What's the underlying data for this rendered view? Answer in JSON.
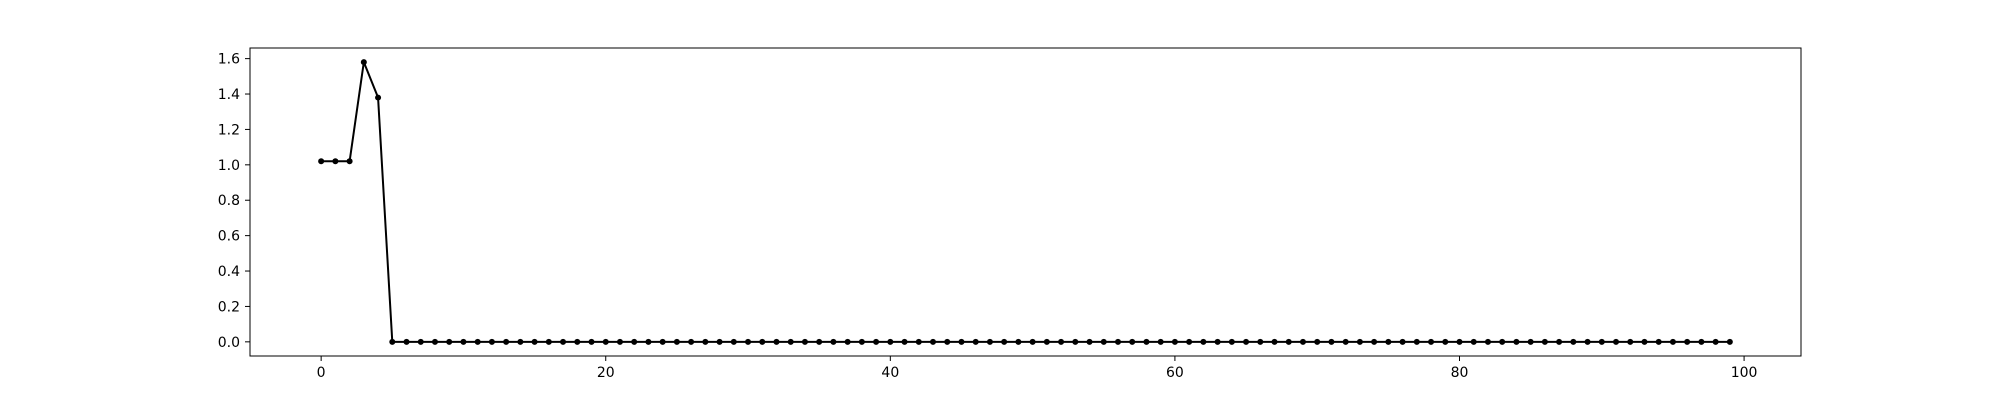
{
  "chart_data": {
    "type": "line",
    "title": "",
    "xlabel": "",
    "ylabel": "",
    "xlim": [
      -5,
      104
    ],
    "ylim": [
      -0.08,
      1.66
    ],
    "x_ticks": [
      0,
      20,
      40,
      60,
      80,
      100
    ],
    "y_ticks": [
      0.0,
      0.2,
      0.4,
      0.6,
      0.8,
      1.0,
      1.2,
      1.4,
      1.6
    ],
    "grid": false,
    "legend": "none",
    "series": [
      {
        "color": "#000000",
        "marker": "dot",
        "x": [
          0,
          1,
          2,
          3,
          4,
          5,
          6,
          7,
          8,
          9,
          10,
          11,
          12,
          13,
          14,
          15,
          16,
          17,
          18,
          19,
          20,
          21,
          22,
          23,
          24,
          25,
          26,
          27,
          28,
          29,
          30,
          31,
          32,
          33,
          34,
          35,
          36,
          37,
          38,
          39,
          40,
          41,
          42,
          43,
          44,
          45,
          46,
          47,
          48,
          49,
          50,
          51,
          52,
          53,
          54,
          55,
          56,
          57,
          58,
          59,
          60,
          61,
          62,
          63,
          64,
          65,
          66,
          67,
          68,
          69,
          70,
          71,
          72,
          73,
          74,
          75,
          76,
          77,
          78,
          79,
          80,
          81,
          82,
          83,
          84,
          85,
          86,
          87,
          88,
          89,
          90,
          91,
          92,
          93,
          94,
          95,
          96,
          97,
          98,
          99
        ],
        "y": [
          1.02,
          1.02,
          1.02,
          1.58,
          1.38,
          0,
          0,
          0,
          0,
          0,
          0,
          0,
          0,
          0,
          0,
          0,
          0,
          0,
          0,
          0,
          0,
          0,
          0,
          0,
          0,
          0,
          0,
          0,
          0,
          0,
          0,
          0,
          0,
          0,
          0,
          0,
          0,
          0,
          0,
          0,
          0,
          0,
          0,
          0,
          0,
          0,
          0,
          0,
          0,
          0,
          0,
          0,
          0,
          0,
          0,
          0,
          0,
          0,
          0,
          0,
          0,
          0,
          0,
          0,
          0,
          0,
          0,
          0,
          0,
          0,
          0,
          0,
          0,
          0,
          0,
          0,
          0,
          0,
          0,
          0,
          0,
          0,
          0,
          0,
          0,
          0,
          0,
          0,
          0,
          0,
          0,
          0,
          0,
          0,
          0,
          0,
          0,
          0,
          0,
          0
        ]
      }
    ]
  }
}
